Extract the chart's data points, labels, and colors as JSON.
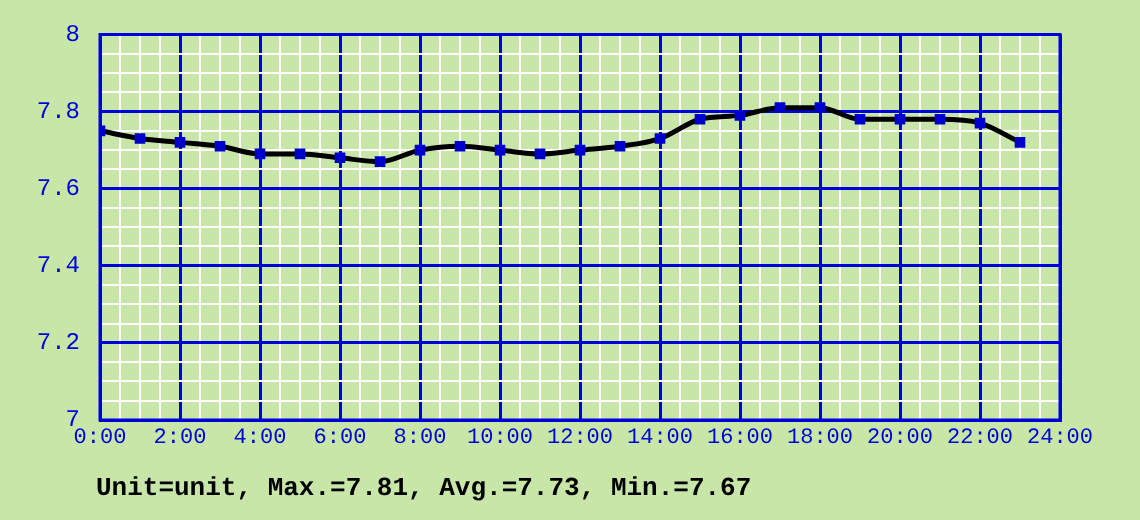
{
  "chart_data": {
    "type": "line",
    "x": [
      0,
      1,
      2,
      3,
      4,
      5,
      6,
      7,
      8,
      9,
      10,
      11,
      12,
      13,
      14,
      15,
      16,
      17,
      18,
      19,
      20,
      21,
      22,
      23
    ],
    "series": [
      {
        "color": "#000000",
        "colors": [
          "#0000cc",
          "#0000cc",
          "#0000cc",
          "#0000cc",
          "#0000cc",
          "#0000cc",
          "#0000cc",
          "#0000cc",
          "#0000cc",
          "#0000cc",
          "#0000cc",
          "#0000cc",
          "#0000cc",
          "#0000cc",
          "#0000cc",
          "#0000cc",
          "#0000cc",
          "#0000cc",
          "#0000cc",
          "#0000cc",
          "#0000cc",
          "#0000cc",
          "#0000cc",
          "#0000cc"
        ],
        "values": [
          7.75,
          7.73,
          7.72,
          7.71,
          7.69,
          7.69,
          7.68,
          7.67,
          7.7,
          7.71,
          7.7,
          7.69,
          7.7,
          7.71,
          7.73,
          7.78,
          7.79,
          7.81,
          7.81,
          7.78,
          7.78,
          7.78,
          7.77,
          7.72
        ]
      }
    ],
    "xlim": [
      0,
      24
    ],
    "xticks": [
      {
        "value": 0,
        "label": "0:00"
      },
      {
        "value": 0.5,
        "label": null
      },
      {
        "value": 1,
        "label": null
      },
      {
        "value": 1.5,
        "label": null
      },
      {
        "value": 2,
        "label": "2:00"
      },
      {
        "value": 2.5,
        "label": null
      },
      {
        "value": 3,
        "label": null
      },
      {
        "value": 3.5,
        "label": null
      },
      {
        "value": 4,
        "label": "4:00"
      },
      {
        "value": 4.5,
        "label": null
      },
      {
        "value": 5,
        "label": null
      },
      {
        "value": 5.5,
        "label": null
      },
      {
        "value": 6,
        "label": "6:00"
      },
      {
        "value": 6.5,
        "label": null
      },
      {
        "value": 7,
        "label": null
      },
      {
        "value": 7.5,
        "label": null
      },
      {
        "value": 8,
        "label": "8:00"
      },
      {
        "value": 8.5,
        "label": null
      },
      {
        "value": 9,
        "label": null
      },
      {
        "value": 9.5,
        "label": null
      },
      {
        "value": 10,
        "label": "10:00"
      },
      {
        "value": 10.5,
        "label": null
      },
      {
        "value": 11,
        "label": null
      },
      {
        "value": 11.5,
        "label": null
      },
      {
        "value": 12,
        "label": "12:00"
      },
      {
        "value": 12.5,
        "label": null
      },
      {
        "value": 13,
        "label": null
      },
      {
        "value": 13.5,
        "label": null
      },
      {
        "value": 14,
        "label": "14:00"
      },
      {
        "value": 14.5,
        "label": null
      },
      {
        "value": 15,
        "label": null
      },
      {
        "value": 15.5,
        "label": null
      },
      {
        "value": 16,
        "label": "16:00"
      },
      {
        "value": 16.5,
        "label": null
      },
      {
        "value": 17,
        "label": null
      },
      {
        "value": 17.5,
        "label": null
      },
      {
        "value": 18,
        "label": "18:00"
      },
      {
        "value": 18.5,
        "label": null
      },
      {
        "value": 19,
        "label": null
      },
      {
        "value": 19.5,
        "label": null
      },
      {
        "value": 20,
        "label": "20:00"
      },
      {
        "value": 20.5,
        "label": null
      },
      {
        "value": 21,
        "label": null
      },
      {
        "value": 21.5,
        "label": null
      },
      {
        "value": 22,
        "label": "22:00"
      },
      {
        "value": 22.5,
        "label": null
      },
      {
        "value": 23,
        "label": null
      },
      {
        "value": 23.5,
        "label": null
      },
      {
        "value": 24,
        "label": "24:00"
      }
    ],
    "ylim": [
      7,
      8
    ],
    "yticks": [
      7,
      {
        "value": 7.05,
        "label": null
      },
      {
        "value": 7.1,
        "label": null
      },
      {
        "value": 7.15,
        "label": null
      },
      {
        "value": 7.2,
        "label": "7.2"
      },
      {
        "value": 7.25,
        "label": null
      },
      {
        "value": 7.3,
        "label": null
      },
      {
        "value": 7.35,
        "label": null
      },
      {
        "value": 7.4,
        "label": "7.4"
      },
      {
        "value": 7.45,
        "label": null
      },
      {
        "value": 7.5,
        "label": null
      },
      {
        "value": 7.55,
        "label": null
      },
      {
        "value": 7.6,
        "label": "7.6"
      },
      {
        "value": 7.65,
        "label": null
      },
      {
        "value": 7.7,
        "label": null
      },
      {
        "value": 7.75,
        "label": null
      },
      {
        "value": 7.8,
        "label": "7.8"
      },
      {
        "value": 7.85,
        "label": null
      },
      {
        "value": 7.9,
        "label": null
      },
      {
        "value": 7.95,
        "label": null
      },
      8
    ],
    "grid": true,
    "legend": false,
    "marker": "square",
    "line_style": "solid",
    "annotations": [
      "Unit=unit, Max.=7.81, Avg.=7.73, Min.=7.67"
    ]
  }
}
